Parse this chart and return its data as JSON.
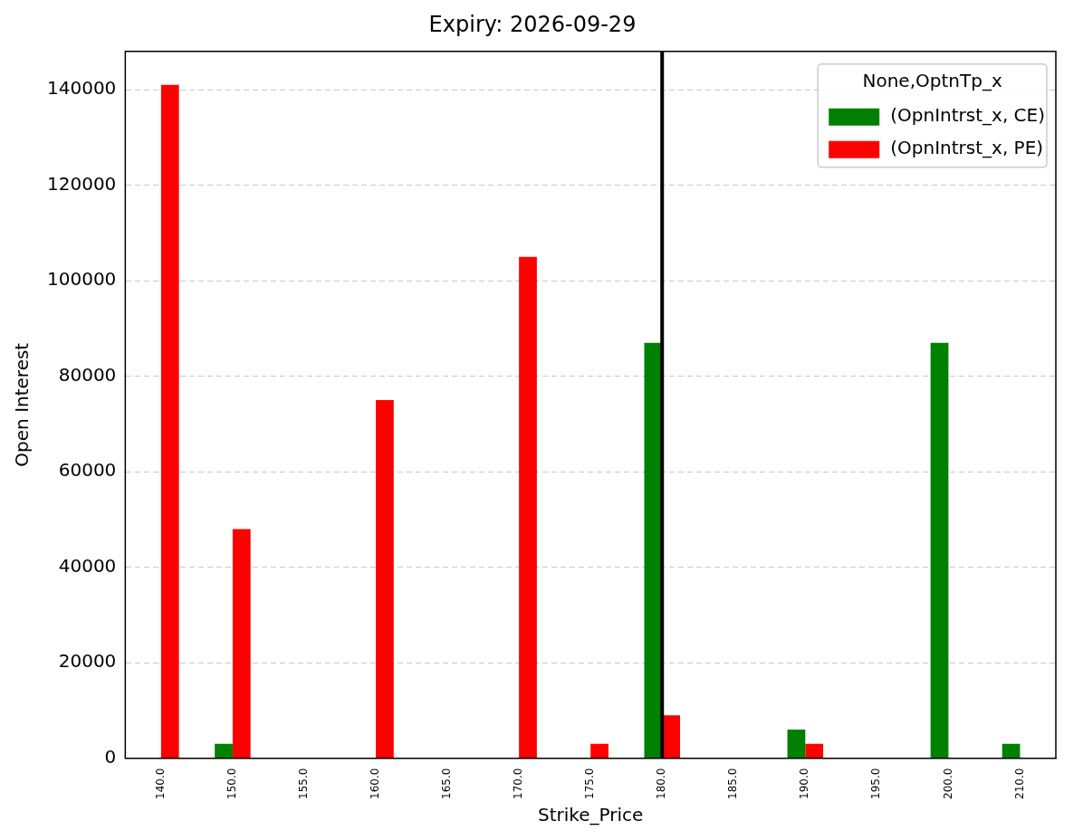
{
  "chart_data": {
    "type": "bar",
    "title": "Expiry: 2026-09-29",
    "xlabel": "Strike_Price",
    "ylabel": "Open Interest",
    "legend_title": "None,OptnTp_x",
    "categories": [
      "140.0",
      "150.0",
      "155.0",
      "160.0",
      "165.0",
      "170.0",
      "175.0",
      "180.0",
      "185.0",
      "190.0",
      "195.0",
      "200.0",
      "210.0"
    ],
    "series": [
      {
        "name": "(OpnIntrst_x, CE)",
        "color": "#008000",
        "values": [
          null,
          3000,
          null,
          null,
          null,
          null,
          null,
          87000,
          null,
          6000,
          null,
          87000,
          3000
        ]
      },
      {
        "name": "(OpnIntrst_x, PE)",
        "color": "#ff0000",
        "values": [
          141000,
          48000,
          null,
          75000,
          null,
          105000,
          3000,
          9000,
          null,
          3000,
          null,
          null,
          null
        ]
      }
    ],
    "ylim": [
      0,
      148000
    ],
    "yticks": [
      0,
      20000,
      40000,
      60000,
      80000,
      100000,
      120000,
      140000
    ],
    "grid": "y",
    "legend": "top right",
    "ref_lines": [
      {
        "axis": "x",
        "value": "180.0",
        "color": "#000000"
      }
    ]
  }
}
